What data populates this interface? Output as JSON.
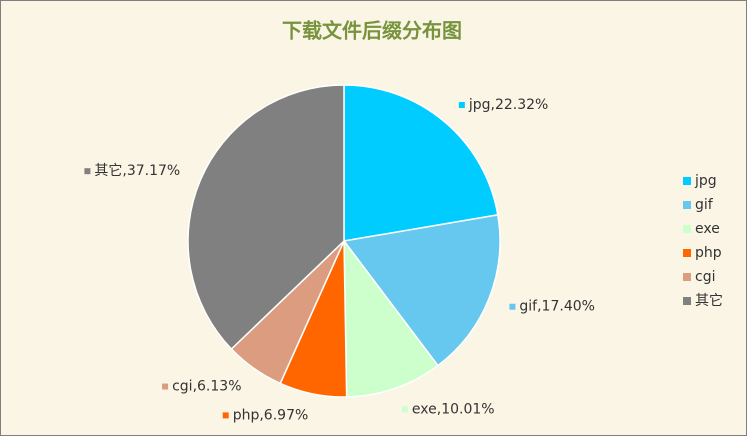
{
  "chart_data": {
    "type": "pie",
    "title": "下载文件后缀分布图",
    "categories": [
      "jpg",
      "gif",
      "exe",
      "php",
      "cgi",
      "其它"
    ],
    "values": [
      22.32,
      17.4,
      10.01,
      6.97,
      6.13,
      37.17
    ],
    "value_labels": [
      "jpg,22.32%",
      "gif,17.40%",
      "exe,10.01%",
      "php,6.97%",
      "cgi,6.13%",
      "其它,37.17%"
    ],
    "colors": [
      "#00ccff",
      "#66c8ee",
      "#ccffcc",
      "#ff6600",
      "#dc9c80",
      "#808080"
    ],
    "legend": "right"
  }
}
